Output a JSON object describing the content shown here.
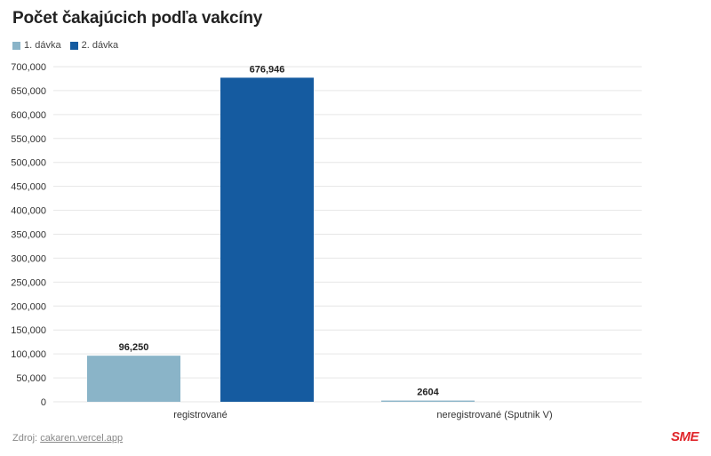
{
  "title": "Počet čakajúcich podľa vakcíny",
  "source": {
    "prefix": "Zdroj:",
    "link": "cakaren.vercel.app"
  },
  "logo": "SME",
  "colors": {
    "series1": "#8ab4c8",
    "series2": "#155ba0",
    "grid": "#e6e6e6",
    "text": "#333333"
  },
  "chart_data": {
    "type": "bar",
    "categories": [
      "registrované",
      "neregistrované (Sputnik V)"
    ],
    "series": [
      {
        "name": "1. dávka",
        "values": [
          96250,
          2604
        ],
        "labels": [
          "96,250",
          "2604"
        ],
        "color": "#8ab4c8"
      },
      {
        "name": "2. dávka",
        "values": [
          676946,
          null
        ],
        "labels": [
          "676,946",
          ""
        ],
        "color": "#155ba0"
      }
    ],
    "ylim": [
      0,
      700000
    ],
    "yticks": [
      0,
      50000,
      100000,
      150000,
      200000,
      250000,
      300000,
      350000,
      400000,
      450000,
      500000,
      550000,
      600000,
      650000,
      700000
    ],
    "ytick_labels": [
      "0",
      "50,000",
      "100,000",
      "150,000",
      "200,000",
      "250,000",
      "300,000",
      "350,000",
      "400,000",
      "450,000",
      "500,000",
      "550,000",
      "600,000",
      "650,000",
      "700,000"
    ],
    "grid": true,
    "legend": "top-left"
  }
}
